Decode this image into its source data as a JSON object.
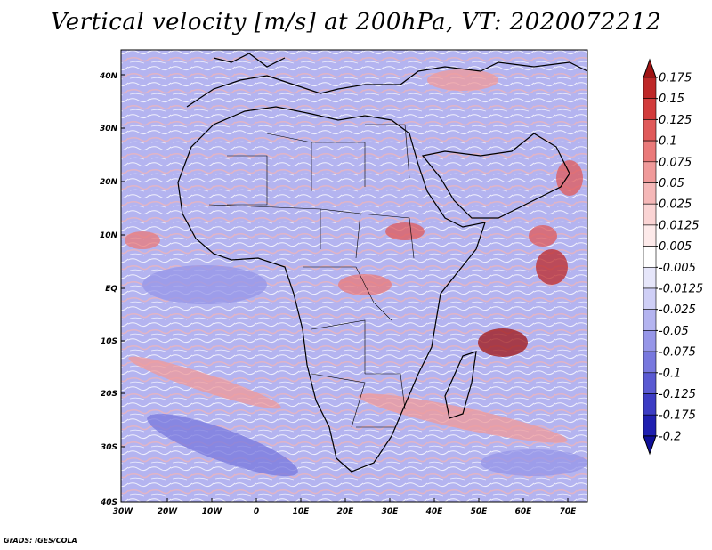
{
  "title": "Vertical velocity [m/s] at 200hPa, VT: 2020072212",
  "credit": "GrADS: IGES/COLA",
  "map": {
    "lon_range": [
      -30,
      75
    ],
    "lat_range": [
      -40,
      45
    ],
    "lon_ticks": [
      "30W",
      "20W",
      "10W",
      "0",
      "10E",
      "20E",
      "30E",
      "40E",
      "50E",
      "60E",
      "70E"
    ],
    "lat_ticks": [
      "40N",
      "30N",
      "20N",
      "10N",
      "EQ",
      "10S",
      "20S",
      "30S",
      "40S"
    ],
    "background_color": "#b4b4f0"
  },
  "colorbar": {
    "labels": [
      "0.175",
      "0.15",
      "0.125",
      "0.1",
      "0.075",
      "0.05",
      "0.025",
      "0.0125",
      "0.005",
      "-0.005",
      "-0.0125",
      "-0.025",
      "-0.05",
      "-0.075",
      "-0.1",
      "-0.125",
      "-0.175",
      "-0.2"
    ],
    "colors": [
      "#a01414",
      "#be2828",
      "#d23c3c",
      "#e05a5a",
      "#ea7a7a",
      "#f09a9a",
      "#f5b8b8",
      "#fad4d4",
      "#fdeaea",
      "#ffffff",
      "#e6e6fa",
      "#cfcff6",
      "#b4b4f0",
      "#9696e8",
      "#7878de",
      "#5a5ad2",
      "#3c3cc4",
      "#2020b0",
      "#10109a"
    ]
  }
}
